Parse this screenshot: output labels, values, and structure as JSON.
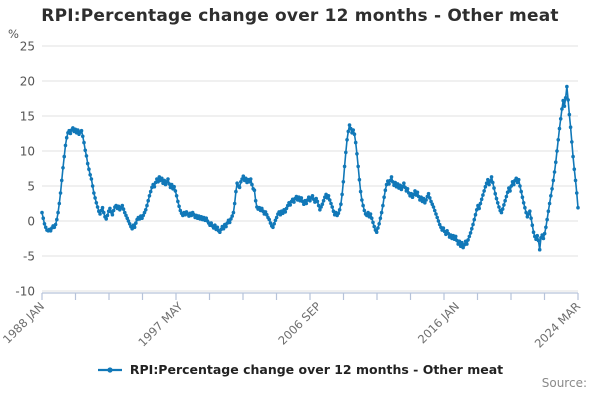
{
  "chart": {
    "title": "RPI:Percentage change over 12 months - Other meat",
    "unit_label": "%"
  },
  "legend": {
    "label": "RPI:Percentage change over 12 months - Other meat"
  },
  "footer": {
    "source_label": "Source:"
  },
  "colors": {
    "line": "#1178b8",
    "grid": "#e1e1e1",
    "axis": "#b6c3da",
    "y_tick_text": "#555555",
    "x_tick_text": "#6e6e6e"
  },
  "chart_data": {
    "type": "line",
    "title": "RPI:Percentage change over 12 months - Other meat",
    "series_name": "RPI:Percentage change over 12 months - Other meat",
    "frequency": "monthly",
    "x_start": "1988 JAN",
    "x_end": "2024 MAR",
    "ylabel": "%",
    "ylim": [
      -10,
      25
    ],
    "y_ticks": [
      25,
      20,
      15,
      10,
      5,
      0,
      -5,
      -10
    ],
    "grid": true,
    "legend_position": "bottom",
    "x_tick_labels": [
      {
        "label": "1988 JAN",
        "month_index": 0
      },
      {
        "label": "1997 MAY",
        "month_index": 112
      },
      {
        "label": "2006 SEP",
        "month_index": 224
      },
      {
        "label": "2016 JAN",
        "month_index": 336
      },
      {
        "label": "2024 MAR",
        "month_index": 434
      }
    ],
    "minor_tick_count": 17,
    "values": [
      1.2,
      0.4,
      -0.4,
      -0.9,
      -1.3,
      -1.4,
      -1.2,
      -1.4,
      -1.0,
      -0.7,
      -0.9,
      -0.5,
      0.2,
      1.2,
      2.5,
      4.0,
      5.8,
      7.6,
      9.2,
      10.8,
      11.9,
      12.6,
      12.9,
      12.5,
      13.0,
      13.3,
      12.8,
      13.1,
      12.6,
      13.0,
      12.4,
      12.7,
      12.9,
      12.1,
      11.2,
      10.1,
      9.3,
      8.2,
      7.4,
      6.6,
      6.0,
      5.0,
      4.0,
      3.3,
      2.6,
      2.0,
      1.4,
      1.0,
      1.5,
      1.9,
      1.2,
      0.6,
      0.3,
      0.8,
      1.4,
      1.8,
      1.3,
      0.9,
      1.5,
      2.0,
      2.2,
      1.8,
      2.1,
      1.6,
      1.9,
      2.2,
      1.7,
      1.2,
      0.8,
      0.4,
      0.0,
      -0.4,
      -0.8,
      -1.1,
      -0.6,
      -0.9,
      -0.3,
      0.2,
      0.5,
      0.3,
      0.7,
      0.4,
      0.8,
      1.2,
      1.6,
      2.2,
      2.9,
      3.6,
      4.2,
      4.8,
      5.2,
      4.9,
      5.5,
      6.0,
      5.6,
      6.3,
      5.8,
      6.1,
      5.4,
      5.8,
      5.2,
      5.6,
      6.0,
      5.3,
      4.8,
      5.2,
      4.6,
      4.9,
      4.3,
      3.6,
      2.8,
      2.1,
      1.5,
      1.1,
      0.8,
      1.2,
      0.9,
      1.3,
      1.0,
      0.7,
      1.1,
      0.8,
      1.2,
      0.9,
      0.5,
      0.8,
      0.4,
      0.7,
      0.3,
      0.6,
      0.2,
      0.5,
      0.1,
      0.4,
      0.0,
      -0.3,
      -0.6,
      -0.3,
      -0.7,
      -1.0,
      -0.6,
      -1.2,
      -0.9,
      -1.4,
      -1.6,
      -1.2,
      -0.8,
      -1.1,
      -0.5,
      -0.8,
      -0.3,
      0.1,
      -0.2,
      0.3,
      0.7,
      1.2,
      2.5,
      4.2,
      5.4,
      5.0,
      4.8,
      5.6,
      6.0,
      6.4,
      5.8,
      6.1,
      5.5,
      5.9,
      5.6,
      6.0,
      5.2,
      4.6,
      4.4,
      2.9,
      2.0,
      1.7,
      1.9,
      1.5,
      1.8,
      1.4,
      1.0,
      1.3,
      0.9,
      0.5,
      0.2,
      -0.3,
      -0.7,
      -0.9,
      -0.4,
      0.1,
      0.5,
      1.0,
      1.3,
      0.9,
      1.4,
      1.1,
      1.6,
      1.3,
      1.8,
      2.2,
      2.6,
      2.3,
      2.8,
      3.1,
      2.7,
      3.2,
      3.5,
      3.0,
      3.4,
      2.9,
      3.3,
      2.8,
      2.4,
      2.9,
      2.5,
      3.0,
      3.4,
      2.9,
      3.3,
      3.6,
      3.1,
      2.7,
      3.2,
      2.8,
      2.2,
      1.6,
      2.0,
      2.4,
      2.9,
      3.4,
      3.8,
      3.3,
      3.6,
      3.0,
      2.5,
      2.0,
      1.4,
      0.9,
      1.2,
      0.8,
      1.1,
      1.6,
      2.4,
      3.8,
      5.6,
      7.8,
      9.8,
      11.6,
      12.8,
      13.7,
      13.2,
      12.6,
      13.0,
      12.4,
      11.2,
      9.6,
      7.8,
      5.9,
      4.2,
      3.0,
      2.2,
      1.5,
      1.0,
      0.8,
      1.2,
      0.6,
      1.0,
      0.4,
      -0.2,
      -0.8,
      -1.3,
      -1.6,
      -1.0,
      -0.4,
      0.4,
      1.2,
      2.2,
      3.4,
      4.4,
      5.2,
      5.7,
      5.3,
      5.8,
      6.3,
      5.6,
      5.1,
      5.5,
      4.9,
      5.3,
      4.7,
      5.1,
      4.5,
      4.9,
      5.4,
      4.8,
      4.3,
      4.6,
      4.0,
      3.6,
      3.9,
      3.4,
      3.8,
      4.3,
      3.7,
      4.1,
      3.5,
      3.0,
      3.4,
      2.8,
      3.2,
      2.6,
      3.0,
      3.5,
      3.9,
      3.3,
      2.8,
      2.4,
      2.0,
      1.5,
      1.0,
      0.5,
      0.0,
      -0.5,
      -0.9,
      -1.3,
      -1.0,
      -1.5,
      -1.9,
      -1.4,
      -1.8,
      -2.3,
      -2.0,
      -2.5,
      -2.1,
      -2.6,
      -2.2,
      -2.8,
      -3.3,
      -2.9,
      -3.6,
      -3.1,
      -3.8,
      -3.4,
      -2.9,
      -3.3,
      -2.7,
      -2.2,
      -1.7,
      -1.1,
      -0.5,
      0.2,
      0.9,
      1.6,
      2.2,
      1.8,
      2.5,
      3.1,
      3.7,
      4.3,
      4.9,
      5.4,
      5.9,
      5.2,
      5.7,
      6.3,
      5.5,
      4.7,
      3.9,
      3.2,
      2.6,
      2.0,
      1.5,
      1.2,
      1.7,
      2.3,
      2.9,
      3.5,
      4.1,
      4.7,
      4.3,
      5.0,
      5.6,
      5.2,
      5.8,
      6.1,
      5.5,
      5.9,
      5.0,
      4.2,
      3.4,
      2.6,
      1.9,
      1.2,
      0.6,
      1.0,
      1.4,
      0.4,
      -0.6,
      -1.6,
      -2.2,
      -2.6,
      -2.1,
      -2.8,
      -4.1,
      -2.4,
      -2.0,
      -2.5,
      -1.8,
      -0.9,
      0.2,
      1.4,
      2.5,
      3.6,
      4.6,
      5.8,
      7.0,
      8.4,
      10.0,
      11.6,
      13.2,
      14.6,
      16.0,
      17.2,
      16.4,
      17.6,
      19.2,
      17.3,
      15.2,
      13.4,
      11.3,
      9.2,
      7.4,
      5.8,
      4.0,
      1.9
    ]
  }
}
